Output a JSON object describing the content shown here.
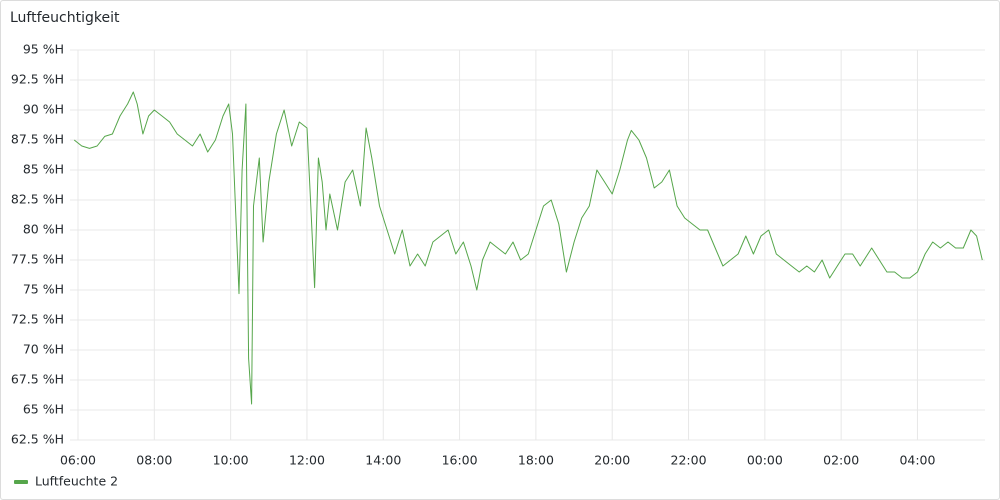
{
  "chart_data": {
    "type": "line",
    "title": "Luftfeuchtigkeit",
    "x": [
      5.9,
      6.1,
      6.3,
      6.5,
      6.7,
      6.9,
      7.1,
      7.3,
      7.45,
      7.55,
      7.7,
      7.85,
      8.0,
      8.2,
      8.4,
      8.6,
      8.8,
      9.0,
      9.2,
      9.4,
      9.6,
      9.8,
      9.95,
      10.05,
      10.15,
      10.22,
      10.3,
      10.4,
      10.47,
      10.55,
      10.6,
      10.75,
      10.85,
      11.0,
      11.2,
      11.4,
      11.6,
      11.8,
      12.0,
      12.1,
      12.2,
      12.3,
      12.4,
      12.5,
      12.6,
      12.8,
      13.0,
      13.2,
      13.4,
      13.55,
      13.7,
      13.9,
      14.1,
      14.3,
      14.5,
      14.7,
      14.9,
      15.1,
      15.3,
      15.5,
      15.7,
      15.9,
      16.1,
      16.3,
      16.45,
      16.6,
      16.8,
      17.0,
      17.2,
      17.4,
      17.6,
      17.8,
      18.0,
      18.2,
      18.4,
      18.6,
      18.8,
      19.0,
      19.2,
      19.4,
      19.6,
      19.8,
      20.0,
      20.2,
      20.4,
      20.5,
      20.7,
      20.9,
      21.1,
      21.3,
      21.5,
      21.7,
      21.9,
      22.1,
      22.3,
      22.5,
      22.7,
      22.9,
      23.1,
      23.3,
      23.5,
      23.7,
      23.9,
      24.1,
      24.3,
      24.5,
      24.7,
      24.9,
      25.1,
      25.3,
      25.5,
      25.7,
      25.9,
      26.1,
      26.3,
      26.5,
      26.8,
      27.0,
      27.2,
      27.4,
      27.6,
      27.8,
      28.0,
      28.2,
      28.4,
      28.6,
      28.8,
      29.0,
      29.2,
      29.4,
      29.55,
      29.7
    ],
    "series": [
      {
        "name": "Luftfeuchte 2",
        "color": "#56a64b",
        "values": [
          87.5,
          87,
          86.8,
          87,
          87.8,
          88,
          89.5,
          90.5,
          91.5,
          90.5,
          88,
          89.5,
          90,
          89.5,
          89,
          88,
          87.5,
          87,
          88,
          86.5,
          87.5,
          89.5,
          90.5,
          88,
          80,
          74.7,
          85,
          90.5,
          69.3,
          65.5,
          82,
          86,
          79,
          84,
          88,
          90,
          87,
          89,
          88.5,
          82,
          75.2,
          86,
          84,
          80,
          83,
          80,
          84,
          85,
          82,
          88.5,
          86,
          82,
          80,
          78,
          80,
          77,
          78,
          77,
          79,
          79.5,
          80,
          78,
          79,
          77,
          75,
          77.5,
          79,
          78.5,
          78,
          79,
          77.5,
          78,
          80,
          82,
          82.5,
          80.5,
          76.5,
          79,
          81,
          82,
          85,
          84,
          83,
          85,
          87.5,
          88.3,
          87.5,
          86,
          83.5,
          84,
          85,
          82,
          81,
          80.5,
          80,
          80,
          78.5,
          77,
          77.5,
          78,
          79.5,
          78,
          79.5,
          80,
          78,
          77.5,
          77,
          76.5,
          77,
          76.5,
          77.5,
          76,
          77,
          78,
          78,
          77,
          78.5,
          77.5,
          76.5,
          76.5,
          76,
          76,
          76.5,
          78,
          79,
          78.5,
          79,
          78.5,
          78.5,
          80,
          79.5,
          77.5
        ]
      }
    ],
    "xlim": [
      5.79,
      29.77
    ],
    "xticks": [
      {
        "value": 6,
        "label": "06:00"
      },
      {
        "value": 8,
        "label": "08:00"
      },
      {
        "value": 10,
        "label": "10:00"
      },
      {
        "value": 12,
        "label": "12:00"
      },
      {
        "value": 14,
        "label": "14:00"
      },
      {
        "value": 16,
        "label": "16:00"
      },
      {
        "value": 18,
        "label": "18:00"
      },
      {
        "value": 20,
        "label": "20:00"
      },
      {
        "value": 22,
        "label": "22:00"
      },
      {
        "value": 24,
        "label": "00:00"
      },
      {
        "value": 26,
        "label": "02:00"
      },
      {
        "value": 28,
        "label": "04:00"
      }
    ],
    "ylim": [
      62.5,
      95
    ],
    "yticks": [
      {
        "value": 62.5,
        "label": "62.5 %H"
      },
      {
        "value": 65,
        "label": "65 %H"
      },
      {
        "value": 67.5,
        "label": "67.5 %H"
      },
      {
        "value": 70,
        "label": "70 %H"
      },
      {
        "value": 72.5,
        "label": "72.5 %H"
      },
      {
        "value": 75,
        "label": "75 %H"
      },
      {
        "value": 77.5,
        "label": "77.5 %H"
      },
      {
        "value": 80,
        "label": "80 %H"
      },
      {
        "value": 82.5,
        "label": "82.5 %H"
      },
      {
        "value": 85,
        "label": "85 %H"
      },
      {
        "value": 87.5,
        "label": "87.5 %H"
      },
      {
        "value": 90,
        "label": "90 %H"
      },
      {
        "value": 92.5,
        "label": "92.5 %H"
      },
      {
        "value": 95,
        "label": "95 %H"
      }
    ],
    "grid": true,
    "legend": "bottom-left"
  }
}
